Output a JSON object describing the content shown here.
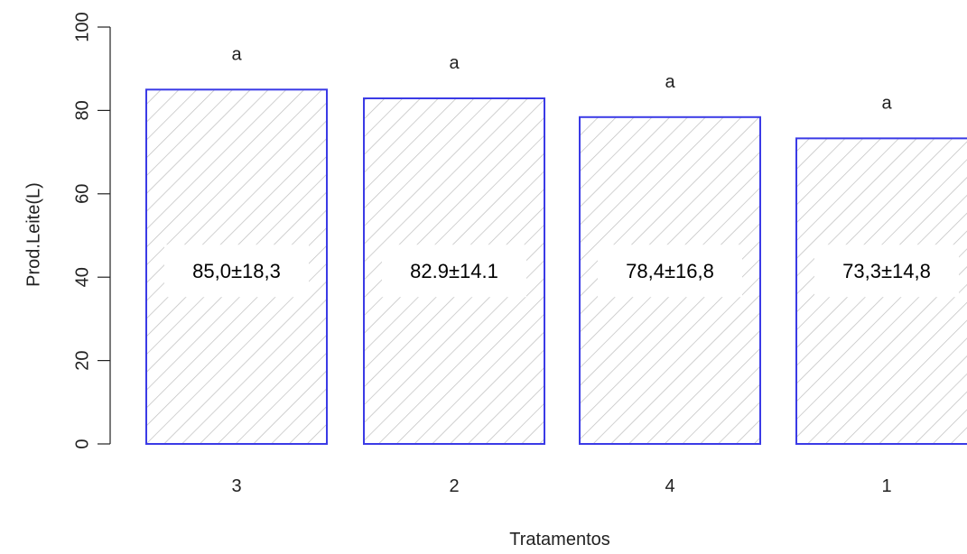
{
  "colors": {
    "bar_stroke": "#3b3be6",
    "hatch": "#bdbdbd",
    "axis": "#222222",
    "label_bg": "#ffffff"
  },
  "chart_data": {
    "type": "bar",
    "title": "",
    "xlabel": "Tratamentos",
    "ylabel": "Prod.Leite(L)",
    "categories": [
      "3",
      "2",
      "4",
      "1"
    ],
    "values": [
      85.0,
      82.9,
      78.4,
      73.3
    ],
    "value_labels": [
      "85,0±18,3",
      "82.9±14.1",
      "78,4±16,8",
      "73,3±14,8"
    ],
    "group_letters": [
      "a",
      "a",
      "a",
      "a"
    ],
    "yticks": [
      "0",
      "20",
      "40",
      "60",
      "80",
      "100"
    ],
    "ylim": [
      0,
      100
    ],
    "bar_fill": "diagonal hatch",
    "grid": false,
    "legend": "none"
  }
}
